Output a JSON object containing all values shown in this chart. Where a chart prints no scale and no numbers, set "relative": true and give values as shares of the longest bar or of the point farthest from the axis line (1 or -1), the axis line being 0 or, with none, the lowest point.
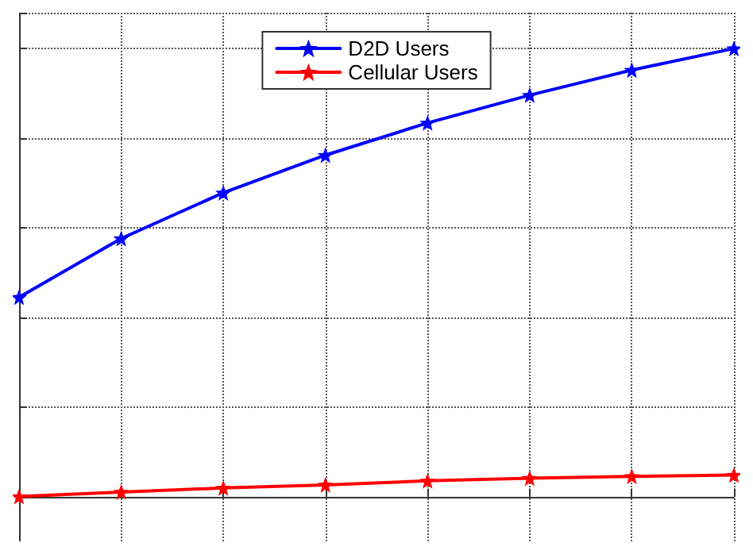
{
  "chart_data": {
    "type": "line",
    "relative": true,
    "categories": [
      null,
      null,
      null,
      null,
      null,
      null,
      null,
      null
    ],
    "series": [
      {
        "name": "D2D Users",
        "color": "#0000ff",
        "marker": "star",
        "values": [
          0.445,
          0.576,
          0.678,
          0.762,
          0.834,
          0.896,
          0.952,
          1
        ]
      },
      {
        "name": "Cellular Users",
        "color": "#ff0000",
        "marker": "star",
        "values": [
          0,
          0.01,
          0.019,
          0.026,
          0.035,
          0.041,
          0.045,
          0.048
        ]
      }
    ],
    "grid": true,
    "legend": "top",
    "tick_labels": false,
    "line_style": "solid"
  }
}
